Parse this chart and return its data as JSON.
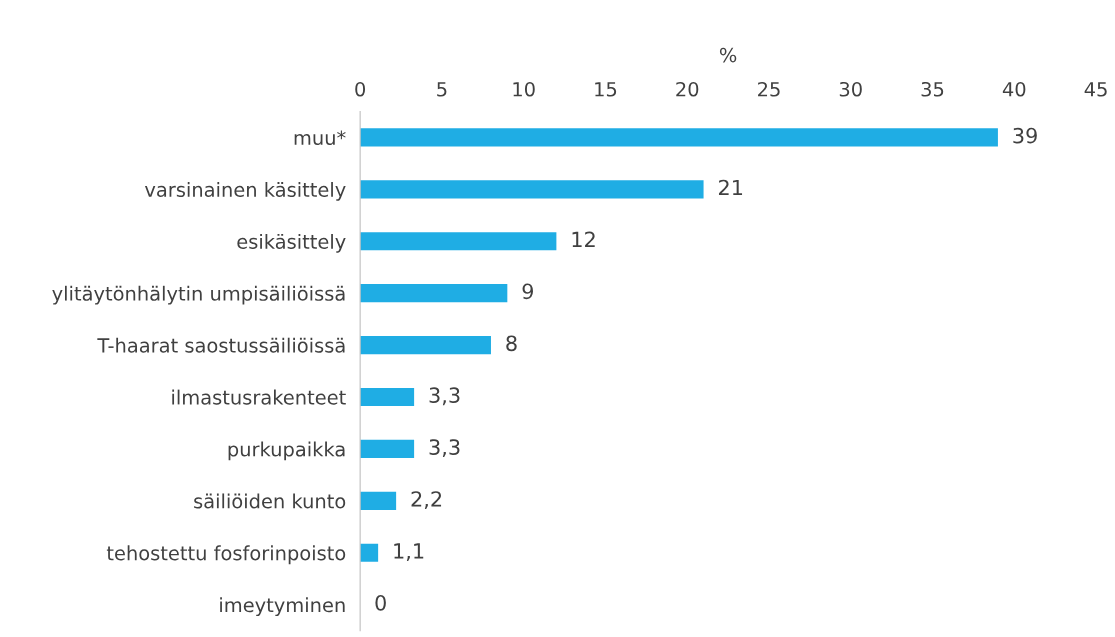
{
  "chart_data": {
    "type": "bar",
    "orientation": "horizontal",
    "xlabel": "%",
    "categories": [
      "muu*",
      "varsinainen käsittely",
      "esikäsittely",
      "ylitäytönhälytin umpisäiliöissä",
      "T-haarat saostussäiliöissä",
      "ilmastusrakenteet",
      "purkupaikka",
      "säiliöiden kunto",
      "tehostettu fosforinpoisto",
      "imeytyminen"
    ],
    "values": [
      39,
      21,
      12,
      9,
      8,
      3.3,
      3.3,
      2.2,
      1.1,
      0
    ],
    "value_labels": [
      "39",
      "21",
      "12",
      "9",
      "8",
      "3,3",
      "3,3",
      "2,2",
      "1,1",
      "0"
    ],
    "color": "#1fade4",
    "xlim": [
      0,
      45
    ],
    "xticks": [
      0,
      5,
      10,
      15,
      20,
      25,
      30,
      35,
      40,
      45
    ],
    "grid": false,
    "legend": false
  }
}
